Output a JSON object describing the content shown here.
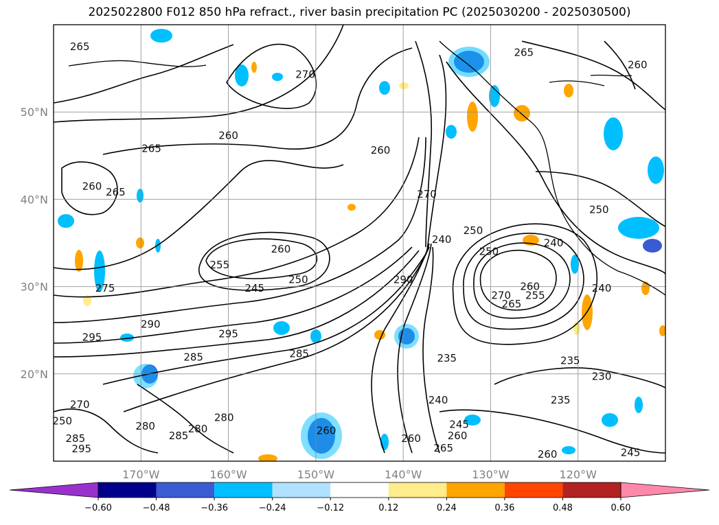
{
  "title": "2025022800 F012 850 hPa refract., river basin precipitation PC (2025030200 - 2025030500)",
  "map": {
    "lon_range": [
      -180,
      -110
    ],
    "lat_range": [
      10,
      60
    ],
    "lat_ticks": [
      {
        "value": 50,
        "label": "50°N"
      },
      {
        "value": 40,
        "label": "40°N"
      },
      {
        "value": 30,
        "label": "30°N"
      },
      {
        "value": 20,
        "label": "20°N"
      }
    ],
    "lon_ticks": [
      {
        "value": -170,
        "label": "170°W"
      },
      {
        "value": -160,
        "label": "160°W"
      },
      {
        "value": -150,
        "label": "150°W"
      },
      {
        "value": -140,
        "label": "140°W"
      },
      {
        "value": -130,
        "label": "130°W"
      },
      {
        "value": -120,
        "label": "120°W"
      }
    ],
    "grid": true,
    "contour_labels": [
      {
        "text": "265",
        "lon": -177.0,
        "lat": 57.5
      },
      {
        "text": "270",
        "lon": -151.2,
        "lat": 54.3
      },
      {
        "text": "260",
        "lon": -160.0,
        "lat": 47.3
      },
      {
        "text": "265",
        "lon": -168.8,
        "lat": 45.8
      },
      {
        "text": "260",
        "lon": -175.6,
        "lat": 41.5
      },
      {
        "text": "265",
        "lon": -172.9,
        "lat": 40.8
      },
      {
        "text": "260",
        "lon": -142.6,
        "lat": 45.6
      },
      {
        "text": "265",
        "lon": -126.2,
        "lat": 56.8
      },
      {
        "text": "260",
        "lon": -113.2,
        "lat": 55.4
      },
      {
        "text": "270",
        "lon": -137.3,
        "lat": 40.6
      },
      {
        "text": "255",
        "lon": -161.0,
        "lat": 32.5
      },
      {
        "text": "260",
        "lon": -154.0,
        "lat": 34.3
      },
      {
        "text": "245",
        "lon": -157.0,
        "lat": 29.8
      },
      {
        "text": "250",
        "lon": -152.0,
        "lat": 30.8
      },
      {
        "text": "240",
        "lon": -135.6,
        "lat": 35.4
      },
      {
        "text": "250",
        "lon": -132.0,
        "lat": 36.4
      },
      {
        "text": "250",
        "lon": -130.2,
        "lat": 34.0
      },
      {
        "text": "240",
        "lon": -122.8,
        "lat": 35.0
      },
      {
        "text": "250",
        "lon": -117.6,
        "lat": 38.8
      },
      {
        "text": "240",
        "lon": -117.3,
        "lat": 29.8
      },
      {
        "text": "290",
        "lon": -140.0,
        "lat": 30.8
      },
      {
        "text": "275",
        "lon": -174.1,
        "lat": 29.8
      },
      {
        "text": "290",
        "lon": -168.9,
        "lat": 25.7
      },
      {
        "text": "295",
        "lon": -175.6,
        "lat": 24.2
      },
      {
        "text": "295",
        "lon": -160.0,
        "lat": 24.6
      },
      {
        "text": "285",
        "lon": -164.0,
        "lat": 21.9
      },
      {
        "text": "285",
        "lon": -151.9,
        "lat": 22.3
      },
      {
        "text": "270",
        "lon": -128.8,
        "lat": 29.0
      },
      {
        "text": "265",
        "lon": -127.6,
        "lat": 28.0
      },
      {
        "text": "260",
        "lon": -125.5,
        "lat": 30.0
      },
      {
        "text": "255",
        "lon": -124.9,
        "lat": 29.0
      },
      {
        "text": "235",
        "lon": -135.0,
        "lat": 21.8
      },
      {
        "text": "235",
        "lon": -120.9,
        "lat": 21.5
      },
      {
        "text": "230",
        "lon": -117.3,
        "lat": 19.7
      },
      {
        "text": "235",
        "lon": -122.0,
        "lat": 17.0
      },
      {
        "text": "240",
        "lon": -136.0,
        "lat": 17.0
      },
      {
        "text": "245",
        "lon": -133.6,
        "lat": 14.2
      },
      {
        "text": "280",
        "lon": -169.5,
        "lat": 14.0
      },
      {
        "text": "280",
        "lon": -160.5,
        "lat": 15.0
      },
      {
        "text": "280",
        "lon": -163.5,
        "lat": 13.7
      },
      {
        "text": "285",
        "lon": -165.7,
        "lat": 12.9
      },
      {
        "text": "285",
        "lon": -177.5,
        "lat": 12.6
      },
      {
        "text": "295",
        "lon": -176.8,
        "lat": 11.4
      },
      {
        "text": "260",
        "lon": -148.8,
        "lat": 13.5
      },
      {
        "text": "260",
        "lon": -139.1,
        "lat": 12.6
      },
      {
        "text": "260",
        "lon": -133.8,
        "lat": 12.9
      },
      {
        "text": "265",
        "lon": -135.4,
        "lat": 11.5
      },
      {
        "text": "260",
        "lon": -123.5,
        "lat": 10.8
      },
      {
        "text": "245",
        "lon": -114.0,
        "lat": 11.0
      },
      {
        "text": "270",
        "lon": -177.0,
        "lat": 16.5
      },
      {
        "text": "250",
        "lon": -179.0,
        "lat": 14.6
      }
    ]
  },
  "colorbar": {
    "ticks": [
      "-0.60",
      "-0.48",
      "-0.36",
      "-0.24",
      "-0.12",
      "0.12",
      "0.24",
      "0.36",
      "0.48",
      "0.60"
    ],
    "colors": {
      "under": "#9932cc",
      "bins": [
        "#00008b",
        "#3a5bd1",
        "#00bfff",
        "#b0e2ff",
        "#ffffff",
        "#ffec8b",
        "#ffa500",
        "#ff4500",
        "#b22222"
      ],
      "over": "#ff88aa"
    }
  }
}
